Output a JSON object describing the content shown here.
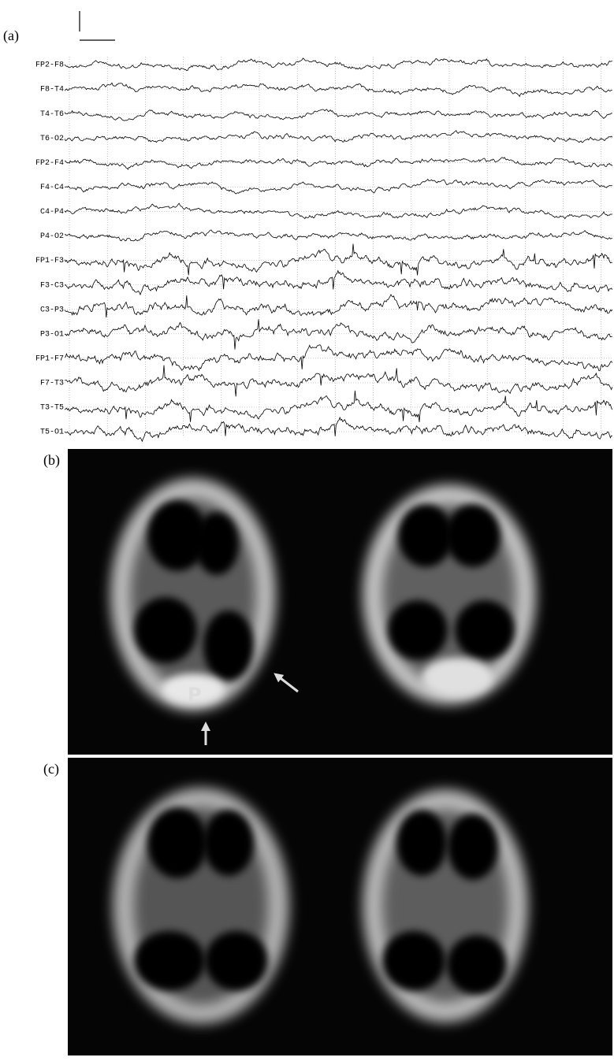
{
  "panel_a": {
    "label": "(a)",
    "channels": [
      "FP2-F8",
      "F8-T4",
      "T4-T6",
      "T6-O2",
      "FP2-F4",
      "F4-C4",
      "C4-P4",
      "P4-O2",
      "FP1-F3",
      "F3-C3",
      "C3-P3",
      "P3-O1",
      "FP1-F7",
      "F7-T3",
      "T3-T5",
      "T5-O1"
    ]
  },
  "panel_b": {
    "label": "(b)",
    "annotation": "P"
  },
  "panel_c": {
    "label": "(c)"
  }
}
